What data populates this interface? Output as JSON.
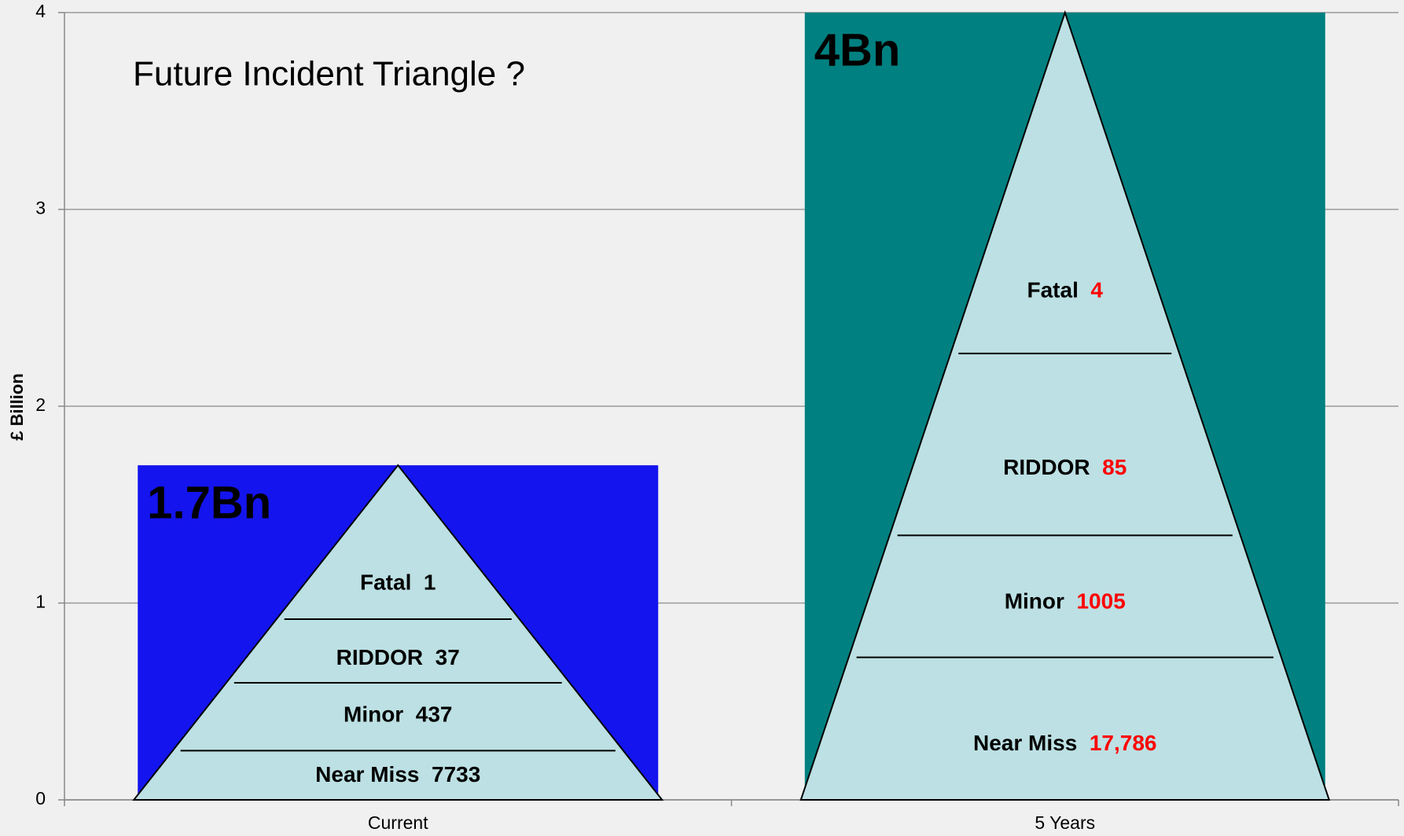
{
  "chart_data": {
    "type": "bar",
    "title": "Future Incident Triangle ?",
    "y_label": "£ Billion",
    "categories": [
      "Current",
      "5 Years"
    ],
    "values": [
      1.7,
      4
    ],
    "value_labels": [
      "1.7Bn",
      "4Bn"
    ],
    "colors": [
      "#1414ee",
      "#008080"
    ],
    "ylim": [
      0,
      4
    ],
    "yticks": [
      0,
      1,
      2,
      3,
      4
    ],
    "grid": true,
    "triangles": [
      {
        "labels": [
          "Fatal",
          "RIDDOR",
          "Minor",
          "Near Miss"
        ],
        "counts": [
          1,
          37,
          437,
          7733
        ],
        "count_color": "#000000"
      },
      {
        "labels": [
          "Fatal",
          "RIDDOR",
          "Minor",
          "Near Miss"
        ],
        "counts": [
          4,
          85,
          1005,
          {
            "value": 17786,
            "label": "17,786"
          }
        ],
        "count_color": "#ff0000"
      }
    ]
  }
}
